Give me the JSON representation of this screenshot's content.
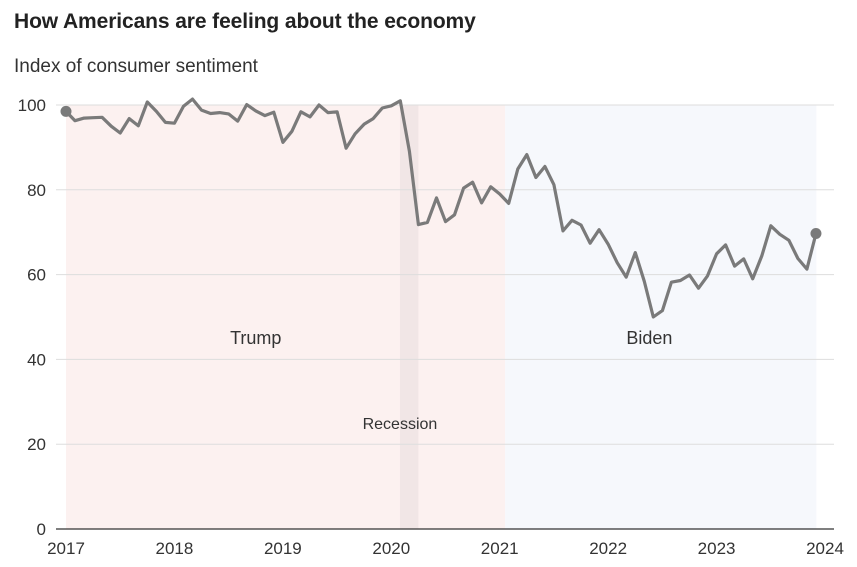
{
  "header": {
    "title": "How Americans are feeling about the economy",
    "subtitle": "Index of consumer sentiment"
  },
  "colors": {
    "line": "#7a7a7a",
    "trump_shade": "#fcf1f0",
    "biden_shade": "#f6f8fc",
    "recession_shade": "#f1e6e6",
    "gridline": "#dddddd",
    "baseline": "#333333"
  },
  "chart_data": {
    "type": "line",
    "title": "How Americans are feeling about the economy",
    "subtitle": "Index of consumer sentiment",
    "xlabel": "",
    "ylabel": "Index of consumer sentiment",
    "ylim": [
      0,
      100
    ],
    "yticks": [
      0,
      20,
      40,
      60,
      80,
      100
    ],
    "xlim": [
      2017.0,
      2024.0
    ],
    "xticks": [
      "2017",
      "2018",
      "2019",
      "2020",
      "2021",
      "2022",
      "2023",
      "2024"
    ],
    "grid": true,
    "legend": "none",
    "x_start": "2017-01",
    "x_frequency": "monthly",
    "series": [
      {
        "name": "Consumer sentiment",
        "values": [
          98.5,
          96.3,
          96.9,
          97.0,
          97.1,
          95.0,
          93.4,
          96.8,
          95.1,
          100.7,
          98.5,
          95.9,
          95.7,
          99.7,
          101.4,
          98.8,
          98.0,
          98.2,
          97.9,
          96.2,
          100.1,
          98.6,
          97.5,
          98.3,
          91.2,
          93.8,
          98.4,
          97.2,
          100.0,
          98.2,
          98.4,
          89.8,
          93.2,
          95.5,
          96.8,
          99.3,
          99.8,
          101.0,
          89.1,
          71.8,
          72.3,
          78.1,
          72.5,
          74.1,
          80.4,
          81.8,
          76.9,
          80.7,
          79.0,
          76.8,
          84.9,
          88.3,
          82.9,
          85.5,
          81.2,
          70.3,
          72.8,
          71.7,
          67.4,
          70.6,
          67.2,
          62.8,
          59.4,
          65.2,
          58.4,
          50.0,
          51.5,
          58.2,
          58.6,
          59.9,
          56.8,
          59.7,
          64.9,
          67.0,
          62.0,
          63.7,
          59.0,
          64.4,
          71.5,
          69.5,
          68.1,
          63.8,
          61.3,
          69.7
        ]
      }
    ],
    "shaded_periods": [
      {
        "name": "Trump",
        "start": 2017.0,
        "end": 2021.05,
        "label": "Trump",
        "label_y": 45
      },
      {
        "name": "Biden",
        "start": 2021.05,
        "end": 2023.92,
        "label": "Biden",
        "label_y": 45
      },
      {
        "name": "Recession",
        "start": 2020.08,
        "end": 2020.25,
        "label": "Recession",
        "label_y": 25
      }
    ],
    "endpoint_markers": [
      "first",
      "last"
    ]
  }
}
